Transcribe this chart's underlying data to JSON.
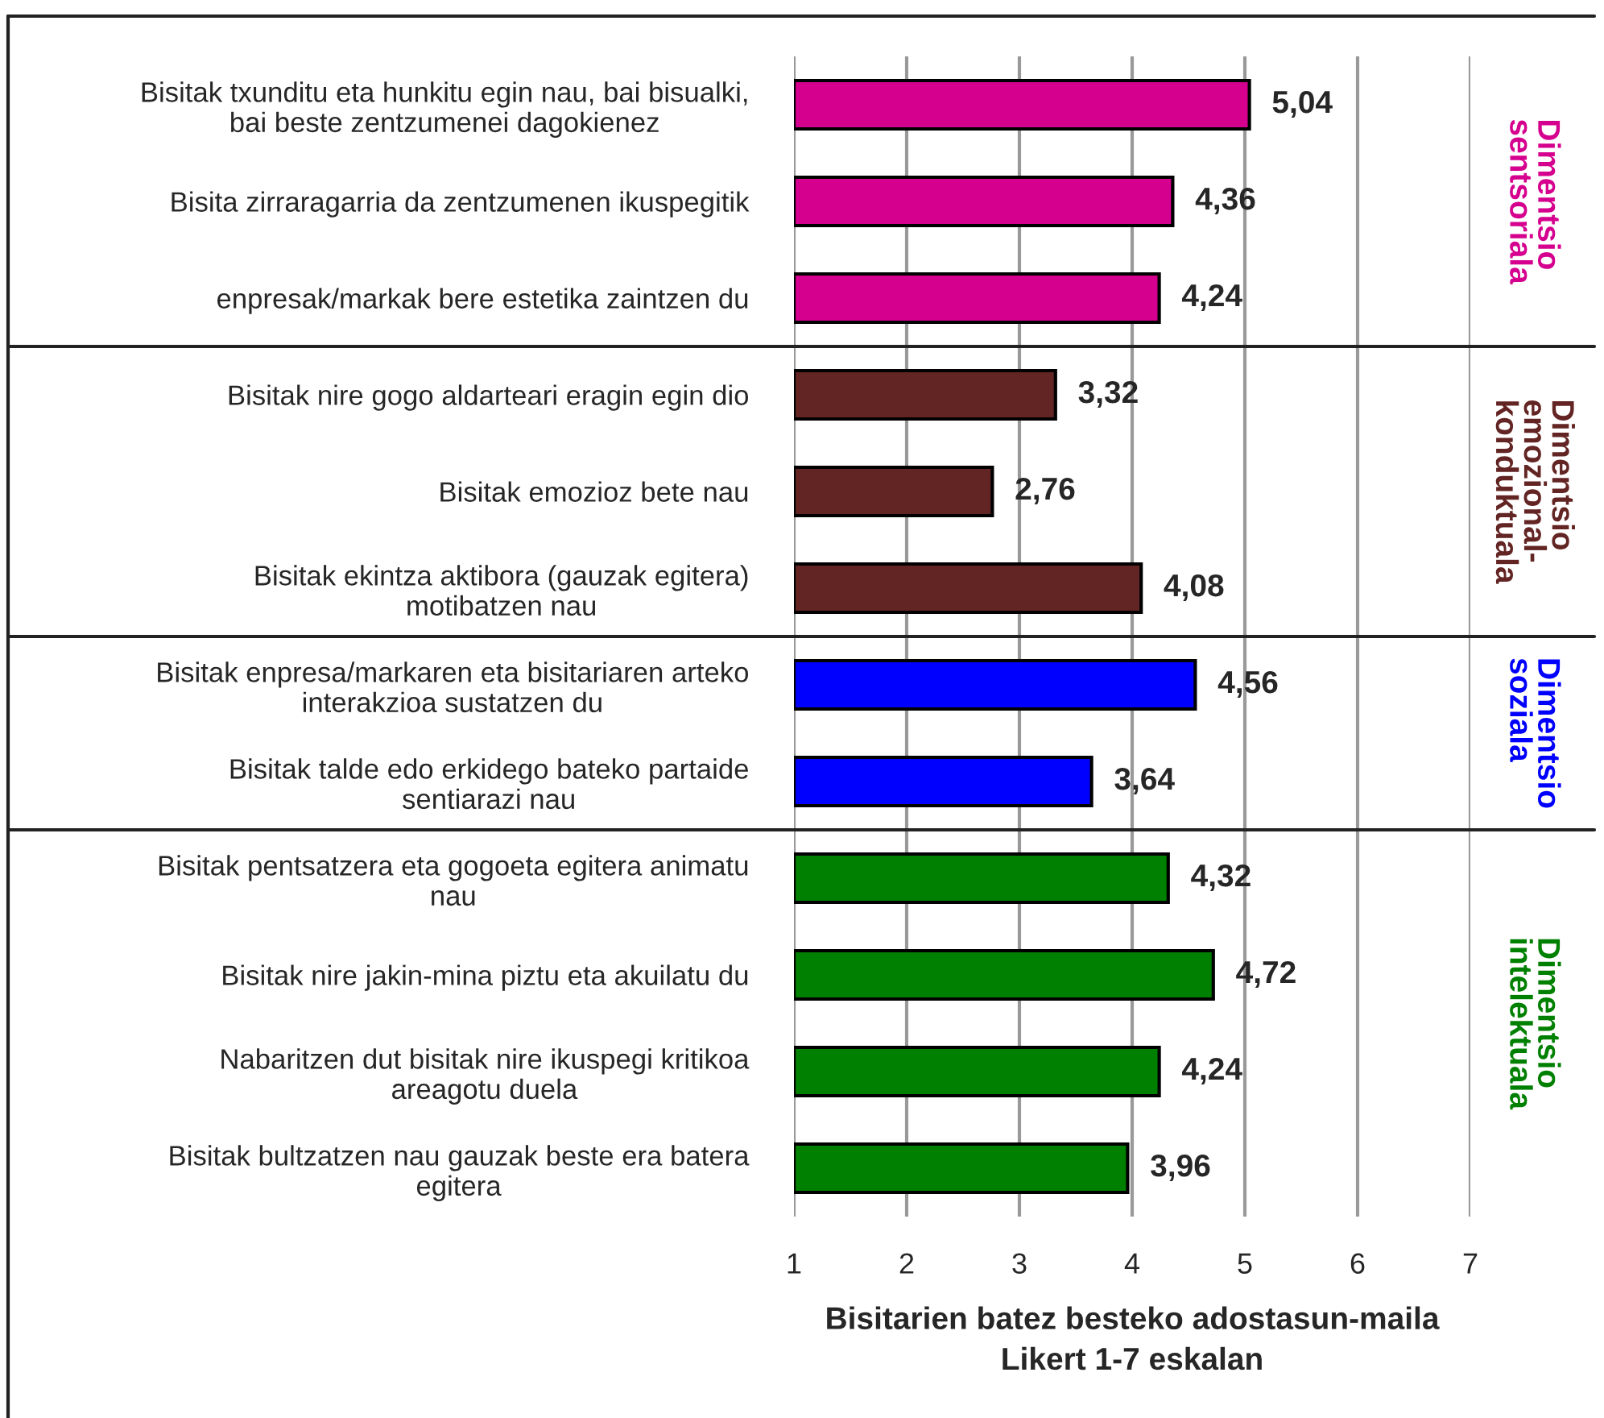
{
  "chart_data": {
    "type": "bar",
    "orientation": "horizontal",
    "xlabel": "Bisitarien batez besteko adostasun-maila\nLikert 1-7 eskalan",
    "categories": [
      "Bisitak txunditu eta hunkitu egin nau, bai bisualki,\nbai beste zentzumenei dagokienez",
      "Bisita zirraragarria da zentzumenen ikuspegitik",
      "enpresak/markak bere estetika zaintzen du",
      "Bisitak nire gogo aldarteari eragin egin dio",
      "Bisitak emozioz bete nau",
      "Bisitak ekintza aktibora (gauzak egitera)\nmotibatzen nau",
      "Bisitak enpresa/markaren eta bisitariaren arteko\ninterakzioa sustatzen du",
      "Bisitak talde edo erkidego bateko partaide\nsentiarazi nau",
      "Bisitak pentsatzera eta gogoeta egitera animatu\nnau",
      "Bisitak nire jakin-mina piztu eta akuilatu du",
      "Nabaritzen dut bisitak nire ikuspegi kritikoa\nareagotu duela",
      "Bisitak bultzatzen nau gauzak beste era batera\negitera"
    ],
    "series": [
      {
        "name": "Dimentsio\nsentsoriala",
        "color": "#d6008f",
        "values": [
          5.04,
          4.36,
          4.24,
          null,
          null,
          null,
          null,
          null,
          null,
          null,
          null,
          null
        ],
        "value_labels": [
          "5,04",
          "4,36",
          "4,24",
          null,
          null,
          null,
          null,
          null,
          null,
          null,
          null,
          null
        ]
      },
      {
        "name": "Dimentsio\nemozional-\nkonduktuala",
        "color": "#632523",
        "values": [
          null,
          null,
          null,
          3.32,
          2.76,
          4.08,
          null,
          null,
          null,
          null,
          null,
          null
        ],
        "value_labels": [
          null,
          null,
          null,
          "3,32",
          "2,76",
          "4,08",
          null,
          null,
          null,
          null,
          null,
          null
        ]
      },
      {
        "name": "Dimentsio\nsoziala",
        "color": "#0000ff",
        "values": [
          null,
          null,
          null,
          null,
          null,
          null,
          4.56,
          3.64,
          null,
          null,
          null,
          null
        ],
        "value_labels": [
          null,
          null,
          null,
          null,
          null,
          null,
          "4,56",
          "3,64",
          null,
          null,
          null,
          null
        ]
      },
      {
        "name": "Dimentsio\nintelektuala",
        "color": "#008000",
        "values": [
          null,
          null,
          null,
          null,
          null,
          null,
          null,
          null,
          4.32,
          4.72,
          4.24,
          3.96
        ],
        "value_labels": [
          null,
          null,
          null,
          null,
          null,
          null,
          null,
          null,
          "4,32",
          "4,72",
          "4,24",
          "3,96"
        ]
      }
    ],
    "xlim": [
      1,
      7
    ],
    "xticks": [
      1,
      2,
      3,
      4,
      5,
      6,
      7
    ],
    "grid": "x",
    "legend": false
  }
}
